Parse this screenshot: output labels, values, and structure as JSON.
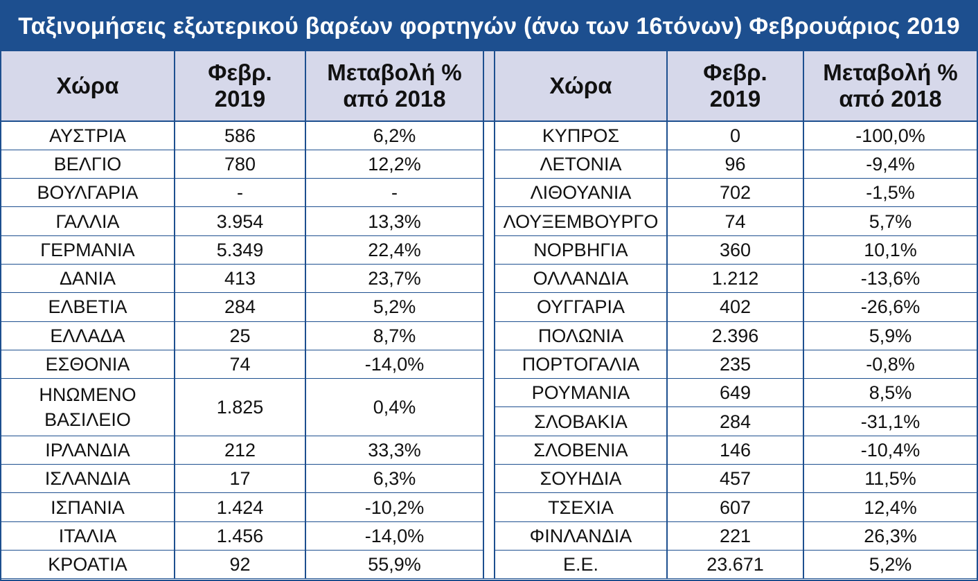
{
  "title": "Ταξινομήσεις εξωτερικού βαρέων φορτηγών (άνω των 16τόνων) Φεβρουάριος 2019",
  "colors": {
    "accent": "#1d4f8f",
    "header_bg": "#d6d8ea"
  },
  "headers": {
    "country": "Χώρα",
    "feb_line1": "Φεβρ.",
    "feb_line2": "2019",
    "change_line1": "Μεταβολή %",
    "change_line2": "από 2018"
  },
  "left_rows": [
    {
      "country": "ΑΥΣΤΡΙΑ",
      "feb": "586",
      "change": "6,2%"
    },
    {
      "country": "ΒΕΛΓΙΟ",
      "feb": "780",
      "change": "12,2%"
    },
    {
      "country": "ΒΟΥΛΓΑΡΙΑ",
      "feb": "-",
      "change": "-"
    },
    {
      "country": "ΓΑΛΛΙΑ",
      "feb": "3.954",
      "change": "13,3%"
    },
    {
      "country": "ΓΕΡΜΑΝΙΑ",
      "feb": "5.349",
      "change": "22,4%"
    },
    {
      "country": "ΔΑΝΙΑ",
      "feb": "413",
      "change": "23,7%"
    },
    {
      "country": "ΕΛΒΕΤΙΑ",
      "feb": "284",
      "change": "5,2%"
    },
    {
      "country": "ΕΛΛΑΔΑ",
      "feb": "25",
      "change": "8,7%"
    },
    {
      "country": "ΕΣΘΟΝΙΑ",
      "feb": "74",
      "change": "-14,0%"
    },
    {
      "country_line1": "ΗΝΩΜΕΝΟ",
      "country_line2": "ΒΑΣΙΛΕΙΟ",
      "feb": "1.825",
      "change": "0,4%"
    },
    {
      "country": "ΙΡΛΑΝΔΙΑ",
      "feb": "212",
      "change": "33,3%"
    },
    {
      "country": "ΙΣΛΑΝΔΙΑ",
      "feb": "17",
      "change": "6,3%"
    },
    {
      "country": "ΙΣΠΑΝΙΑ",
      "feb": "1.424",
      "change": "-10,2%"
    },
    {
      "country": "ΙΤΑΛΙΑ",
      "feb": "1.456",
      "change": "-14,0%"
    },
    {
      "country": "ΚΡΟΑΤΙΑ",
      "feb": "92",
      "change": "55,9%"
    }
  ],
  "right_rows": [
    {
      "country": "ΚΥΠΡΟΣ",
      "feb": "0",
      "change": "-100,0%"
    },
    {
      "country": "ΛΕΤΟΝΙΑ",
      "feb": "96",
      "change": "-9,4%"
    },
    {
      "country": "ΛΙΘΟΥΑΝΙΑ",
      "feb": "702",
      "change": "-1,5%"
    },
    {
      "country": "ΛΟΥΞΕΜΒΟΥΡΓΟ",
      "feb": "74",
      "change": "5,7%"
    },
    {
      "country": "ΝΟΡΒΗΓΙΑ",
      "feb": "360",
      "change": "10,1%"
    },
    {
      "country": "ΟΛΛΑΝΔΙΑ",
      "feb": "1.212",
      "change": "-13,6%"
    },
    {
      "country": "ΟΥΓΓΑΡΙΑ",
      "feb": "402",
      "change": "-26,6%"
    },
    {
      "country": "ΠΟΛΩΝΙΑ",
      "feb": "2.396",
      "change": "5,9%"
    },
    {
      "country": "ΠΟΡΤΟΓΑΛΙΑ",
      "feb": "235",
      "change": "-0,8%"
    },
    {
      "country": "ΡΟΥΜΑΝΙΑ",
      "feb": "649",
      "change": "8,5%"
    },
    {
      "country": "ΣΛΟΒΑΚΙΑ",
      "feb": "284",
      "change": "-31,1%"
    },
    {
      "country": "ΣΛΟΒΕΝΙΑ",
      "feb": "146",
      "change": "-10,4%"
    },
    {
      "country": "ΣΟΥΗΔΙΑ",
      "feb": "457",
      "change": "11,5%"
    },
    {
      "country": "ΤΣΕΧΙΑ",
      "feb": "607",
      "change": "12,4%"
    },
    {
      "country": "ΦΙΝΛΑΝΔΙΑ",
      "feb": "221",
      "change": "26,3%"
    },
    {
      "country": "Ε.Ε.",
      "feb": "23.671",
      "change": "5,2%"
    }
  ]
}
